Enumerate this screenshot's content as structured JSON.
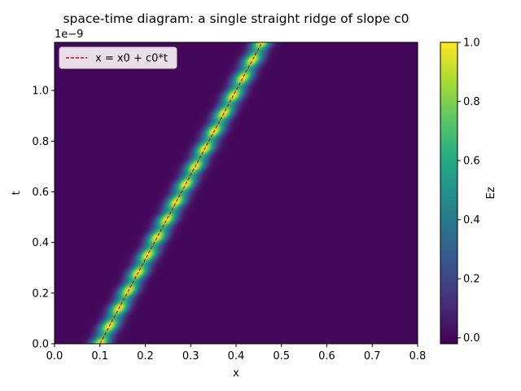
{
  "chart_data": {
    "type": "heatmap",
    "title": "space-time diagram: a single straight ridge of slope c0",
    "xlabel": "x",
    "ylabel": "t",
    "y_offset_label": "1e−9",
    "y_scale": 1e-09,
    "xlim": [
      0.0,
      0.8
    ],
    "ylim": [
      0.0,
      1.19e-09
    ],
    "x_ticks": [
      0.0,
      0.1,
      0.2,
      0.3,
      0.4,
      0.5,
      0.6,
      0.7,
      0.8
    ],
    "x_tick_labels": [
      "0.0",
      "0.1",
      "0.2",
      "0.3",
      "0.4",
      "0.5",
      "0.6",
      "0.7",
      "0.8"
    ],
    "y_ticks": [
      0.0,
      2e-10,
      4e-10,
      6e-10,
      8e-10,
      1e-09
    ],
    "y_tick_labels": [
      "0.0",
      "0.2",
      "0.4",
      "0.6",
      "0.8",
      "1.0"
    ],
    "ridge": {
      "x0": 0.1,
      "c0": 300000000.0,
      "width": 0.02,
      "modulation_period_t": 7e-11
    },
    "field_range": [
      -0.02,
      1.0
    ],
    "colormap": "viridis",
    "colorbar": {
      "label": "Ez",
      "ticks": [
        0.0,
        0.2,
        0.4,
        0.6,
        0.8,
        1.0
      ],
      "tick_labels": [
        "0.0",
        "0.2",
        "0.4",
        "0.6",
        "0.8",
        "1.0"
      ]
    },
    "line_series": [
      {
        "name": "x = x0 + c0*t",
        "color": "#e00000",
        "style": "dashed",
        "x": [
          0.1,
          0.457
        ],
        "t": [
          0.0,
          1.19e-09
        ]
      }
    ],
    "legend": {
      "placement": "top-left"
    },
    "grid": false
  }
}
